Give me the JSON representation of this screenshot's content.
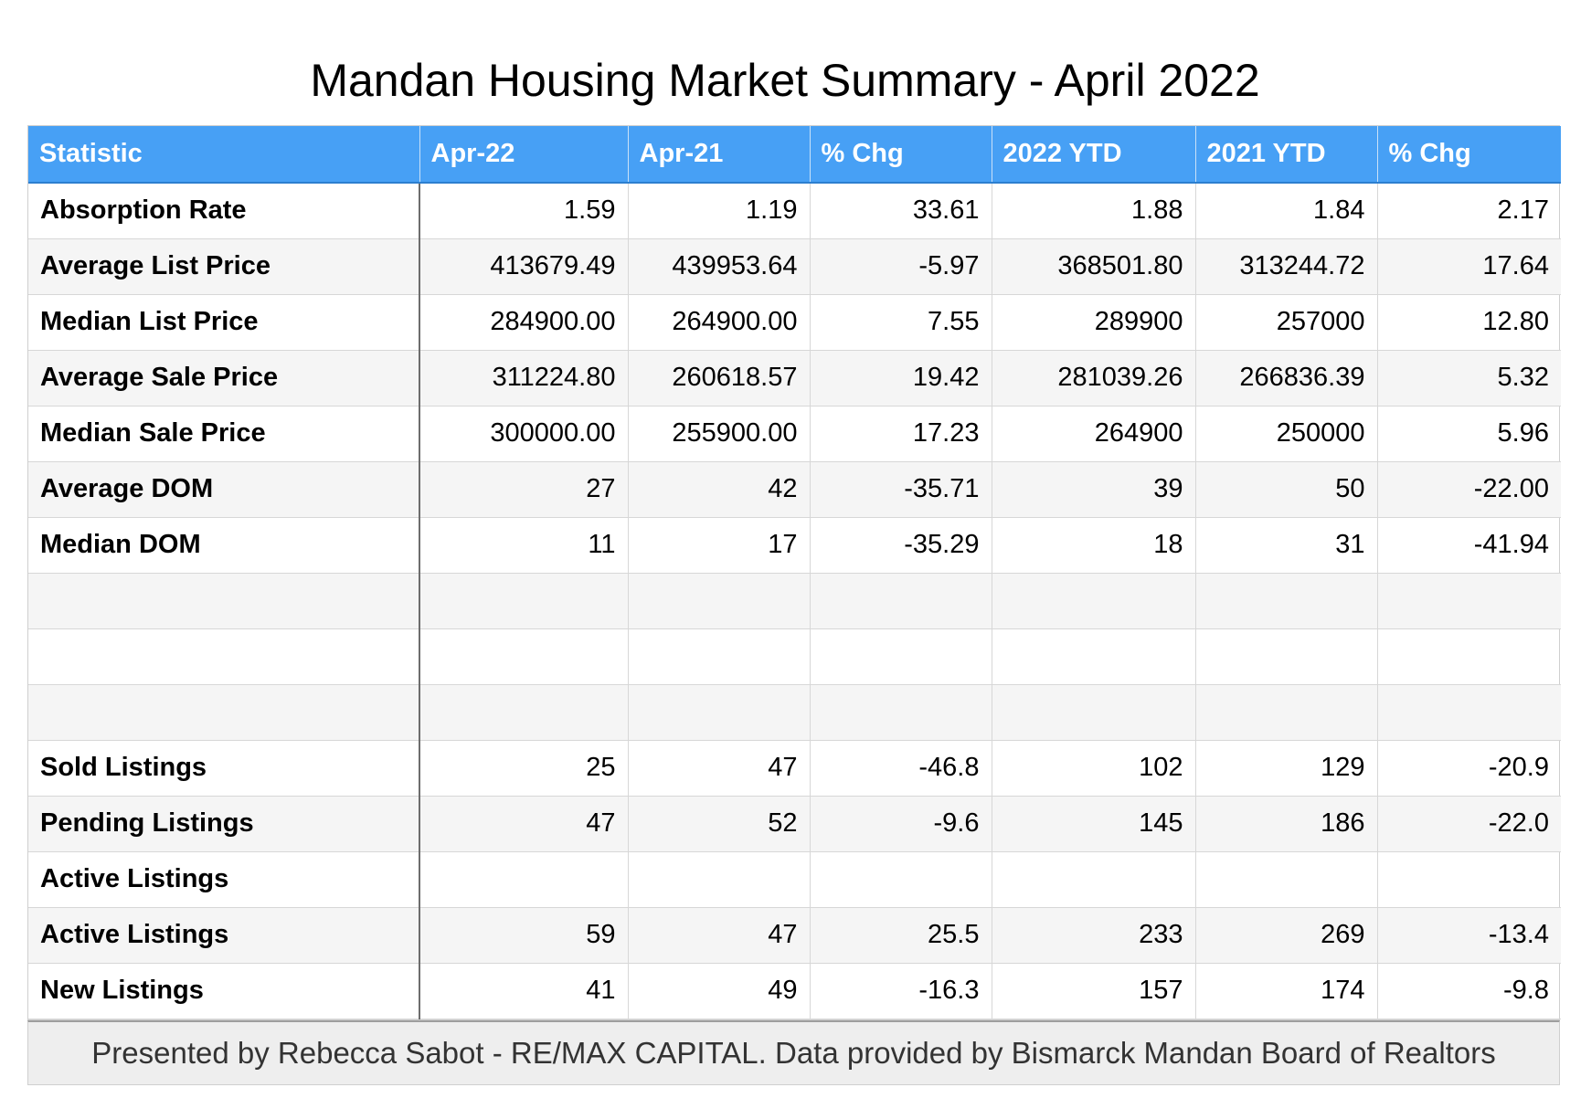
{
  "title": "Mandan Housing Market Summary - April 2022",
  "table": {
    "headers": [
      "Statistic",
      "Apr-22",
      "Apr-21",
      "% Chg",
      "2022 YTD",
      "2021 YTD",
      "% Chg"
    ],
    "rows": [
      [
        "Absorption Rate",
        "1.59",
        "1.19",
        "33.61",
        "1.88",
        "1.84",
        "2.17"
      ],
      [
        "Average List Price",
        "413679.49",
        "439953.64",
        "-5.97",
        "368501.80",
        "313244.72",
        "17.64"
      ],
      [
        "Median List Price",
        "284900.00",
        "264900.00",
        "7.55",
        "289900",
        "257000",
        "12.80"
      ],
      [
        "Average Sale Price",
        "311224.80",
        "260618.57",
        "19.42",
        "281039.26",
        "266836.39",
        "5.32"
      ],
      [
        "Median Sale Price",
        "300000.00",
        "255900.00",
        "17.23",
        "264900",
        "250000",
        "5.96"
      ],
      [
        "Average DOM",
        "27",
        "42",
        "-35.71",
        "39",
        "50",
        "-22.00"
      ],
      [
        "Median DOM",
        "11",
        "17",
        "-35.29",
        "18",
        "31",
        "-41.94"
      ],
      [
        "",
        "",
        "",
        "",
        "",
        "",
        ""
      ],
      [
        "",
        "",
        "",
        "",
        "",
        "",
        ""
      ],
      [
        "",
        "",
        "",
        "",
        "",
        "",
        ""
      ],
      [
        "Sold Listings",
        "25",
        "47",
        "-46.8",
        "102",
        "129",
        "-20.9"
      ],
      [
        "Pending Listings",
        "47",
        "52",
        "-9.6",
        "145",
        "186",
        "-22.0"
      ],
      [
        "Active Listings",
        "",
        "",
        "",
        "",
        "",
        ""
      ],
      [
        "Active Listings",
        "59",
        "47",
        "25.5",
        "233",
        "269",
        "-13.4"
      ],
      [
        "New Listings",
        "41",
        "49",
        "-16.3",
        "157",
        "174",
        "-9.8"
      ]
    ]
  },
  "footer": "Presented by Rebecca Sabot - RE/MAX CAPITAL. Data provided by Bismarck Mandan Board of Realtors",
  "colors": {
    "header_bg": "#47a0f5",
    "header_text": "#ffffff",
    "stripe": "#f5f5f5",
    "footer_bg": "#eeeeee"
  }
}
